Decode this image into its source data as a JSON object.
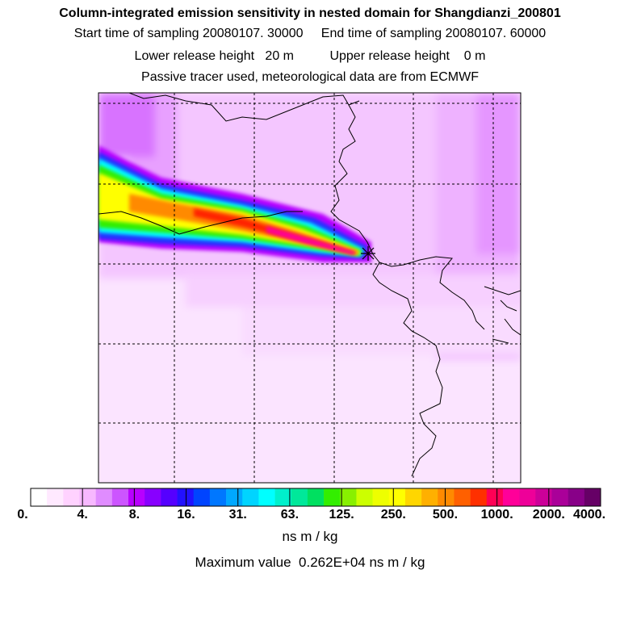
{
  "header": {
    "title": "Column-integrated emission sensitivity in nested domain for Shangdianzi_200801",
    "start_label": "Start time of sampling 20080107. 30000",
    "end_label": "End time of sampling 20080107. 60000",
    "lower_label": "Lower release height   20 m",
    "upper_label": "Upper release height    0 m",
    "tracer_line": "Passive tracer used, meteorological data are from ECMWF"
  },
  "colorbar": {
    "ticks": [
      "0.",
      "4.",
      "8.",
      "16.",
      "31.",
      "63.",
      "125.",
      "250.",
      "500.",
      "1000.",
      "2000.",
      "4000."
    ],
    "colors": [
      "#ffffff",
      "#ffe9ff",
      "#ffd2ff",
      "#f7b8ff",
      "#e08cff",
      "#cc55ff",
      "#b800ff",
      "#8800ff",
      "#5500ff",
      "#2211ff",
      "#0044ff",
      "#0077ff",
      "#00a8ff",
      "#00d4ff",
      "#00ffff",
      "#00f0cc",
      "#00e89a",
      "#00e060",
      "#33ee00",
      "#88f000",
      "#ccff00",
      "#eeff00",
      "#ffff00",
      "#ffd600",
      "#ffb000",
      "#ff8a00",
      "#ff6000",
      "#ff3000",
      "#ff0055",
      "#ff0099",
      "#ee0099",
      "#cc0099",
      "#aa0099",
      "#880088",
      "#660066"
    ],
    "units": "ns m / kg",
    "max_value_text": "Maximum value  0.262E+04 ns m / kg"
  },
  "map": {
    "marker": "receptor-star-icon",
    "plume_colors": {
      "background": "#f6ccff",
      "light": "#eeb0ff",
      "violet": "#cc55ff",
      "blue": "#2233ff",
      "cyan": "#00ffff",
      "green": "#33ee00",
      "yellow": "#ffff00",
      "orange": "#ff8a00",
      "red": "#ff0000",
      "magenta": "#ff0099"
    }
  }
}
